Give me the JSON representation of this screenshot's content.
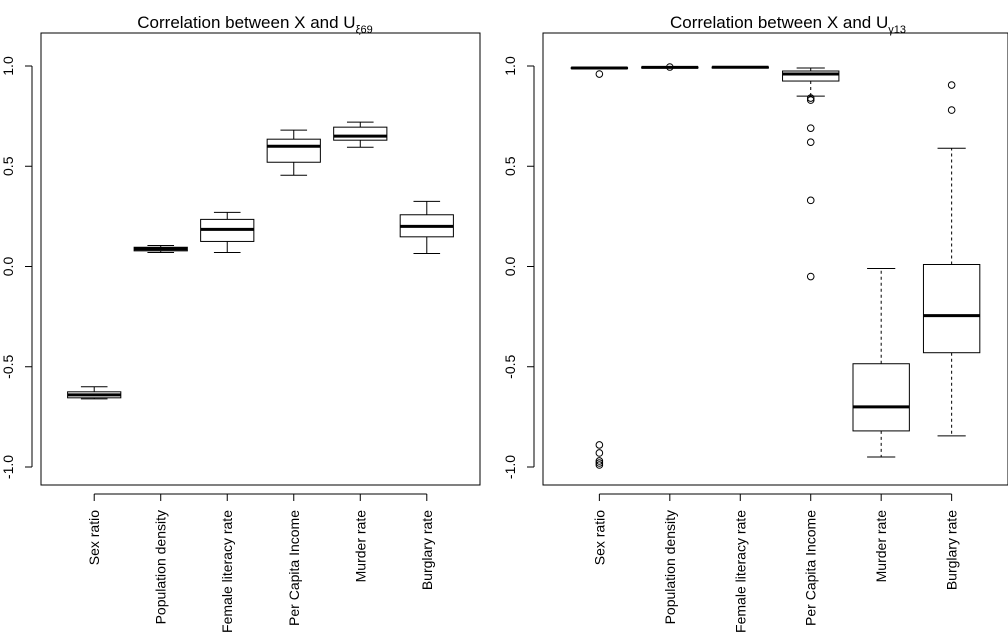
{
  "chart_data": [
    {
      "type": "box",
      "title": {
        "main": "Correlation between X and U",
        "subscript": "ξ69"
      },
      "xlabel": "",
      "ylabel": "",
      "ylim": [
        -1.0,
        1.0
      ],
      "yticks": [
        -1.0,
        -0.5,
        0.0,
        0.5,
        1.0
      ],
      "ytick_labels": [
        "-1.0",
        "-0.5",
        "0.0",
        "0.5",
        "1.0"
      ],
      "grid": false,
      "categories": [
        "Sex ratio",
        "Population density",
        "Female literacy rate",
        "Per Capita Income",
        "Murder rate",
        "Burglary rate"
      ],
      "boxes": [
        {
          "category": "Sex ratio",
          "whisker_low": -0.66,
          "q1": -0.655,
          "median": -0.64,
          "q3": -0.625,
          "whisker_high": -0.6,
          "outliers": []
        },
        {
          "category": "Population density",
          "whisker_low": 0.07,
          "q1": 0.078,
          "median": 0.088,
          "q3": 0.096,
          "whisker_high": 0.105,
          "outliers": []
        },
        {
          "category": "Female literacy rate",
          "whisker_low": 0.07,
          "q1": 0.125,
          "median": 0.185,
          "q3": 0.235,
          "whisker_high": 0.27,
          "outliers": []
        },
        {
          "category": "Per Capita Income",
          "whisker_low": 0.455,
          "q1": 0.52,
          "median": 0.6,
          "q3": 0.635,
          "whisker_high": 0.68,
          "outliers": []
        },
        {
          "category": "Murder rate",
          "whisker_low": 0.595,
          "q1": 0.63,
          "median": 0.65,
          "q3": 0.695,
          "whisker_high": 0.72,
          "outliers": []
        },
        {
          "category": "Burglary rate",
          "whisker_low": 0.065,
          "q1": 0.148,
          "median": 0.2,
          "q3": 0.258,
          "whisker_high": 0.325,
          "outliers": []
        }
      ]
    },
    {
      "type": "box",
      "title": {
        "main": "Correlation between X and U",
        "subscript": "γ13"
      },
      "xlabel": "",
      "ylabel": "",
      "ylim": [
        -1.0,
        1.0
      ],
      "yticks": [
        -1.0,
        -0.5,
        0.0,
        0.5,
        1.0
      ],
      "ytick_labels": [
        "-1.0",
        "-0.5",
        "0.0",
        "0.5",
        "1.0"
      ],
      "grid": false,
      "categories": [
        "Sex ratio",
        "Population density",
        "Female literacy rate",
        "Per Capita Income",
        "Murder rate",
        "Burglary rate"
      ],
      "boxes": [
        {
          "category": "Sex ratio",
          "whisker_low": 0.985,
          "q1": 0.988,
          "median": 0.99,
          "q3": 0.992,
          "whisker_high": 0.994,
          "outliers": [
            0.96,
            -0.89,
            -0.93,
            -0.97,
            -0.98,
            -0.99
          ]
        },
        {
          "category": "Population density",
          "whisker_low": 0.99,
          "q1": 0.991,
          "median": 0.993,
          "q3": 0.995,
          "whisker_high": 0.997,
          "outliers": [
            0.995
          ]
        },
        {
          "category": "Female literacy rate",
          "whisker_low": 0.991,
          "q1": 0.992,
          "median": 0.994,
          "q3": 0.995,
          "whisker_high": 0.996,
          "outliers": []
        },
        {
          "category": "Per Capita Income",
          "whisker_low": 0.85,
          "q1": 0.925,
          "median": 0.96,
          "q3": 0.975,
          "whisker_high": 0.99,
          "outliers": [
            0.84,
            0.83,
            0.69,
            0.62,
            0.33,
            -0.05
          ]
        },
        {
          "category": "Murder rate",
          "whisker_low": -0.95,
          "q1": -0.82,
          "median": -0.7,
          "q3": -0.485,
          "whisker_high": -0.01,
          "outliers": []
        },
        {
          "category": "Burglary rate",
          "whisker_low": -0.845,
          "q1": -0.43,
          "median": -0.245,
          "q3": 0.01,
          "whisker_high": 0.59,
          "outliers": [
            0.78,
            0.905
          ]
        }
      ]
    }
  ]
}
